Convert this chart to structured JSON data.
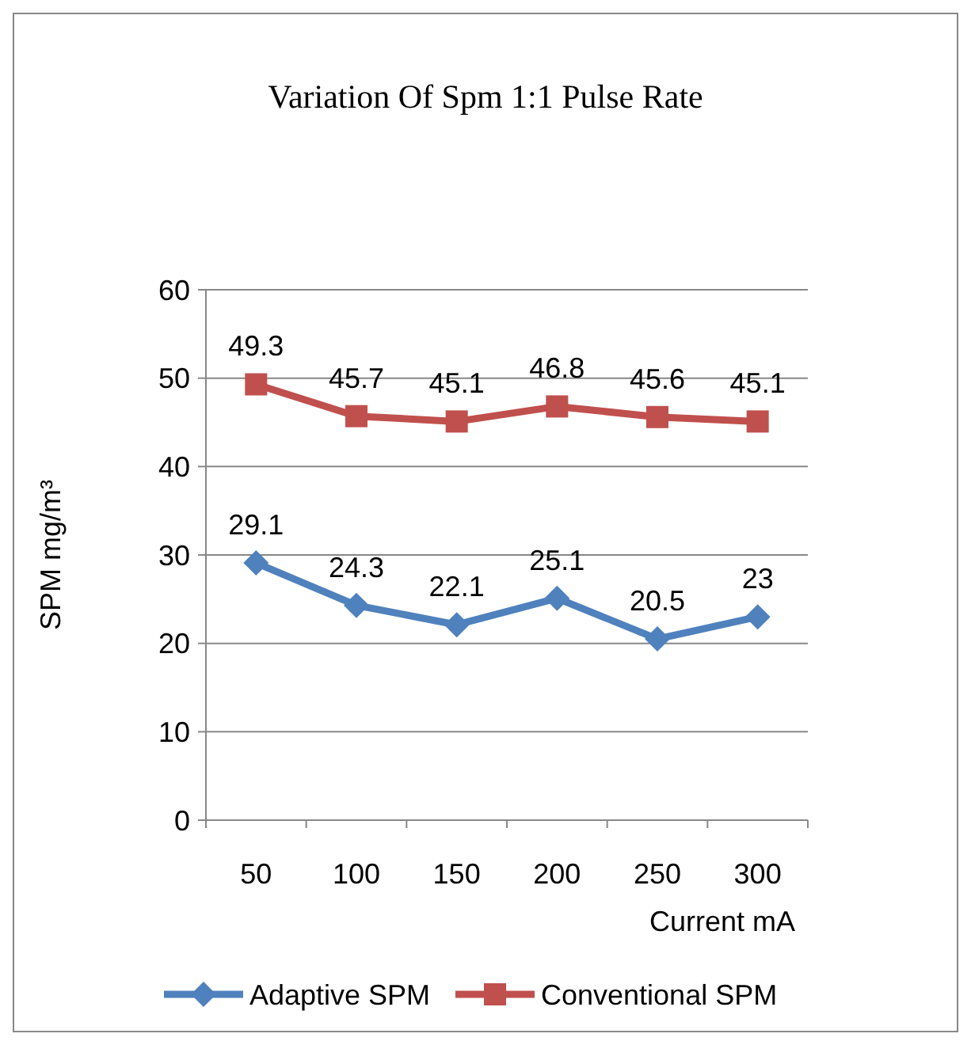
{
  "chart_data": {
    "type": "line",
    "title": "Variation Of Spm 1:1 Pulse Rate",
    "xlabel": "Current mA",
    "ylabel": "SPM  mg/m³",
    "categories": [
      "50",
      "100",
      "150",
      "200",
      "250",
      "300"
    ],
    "series": [
      {
        "name": "Adaptive SPM",
        "color": "#4f81bd",
        "marker": "diamond",
        "values": [
          29.1,
          24.3,
          22.1,
          25.1,
          20.5,
          23
        ]
      },
      {
        "name": "Conventional SPM",
        "color": "#c0504d",
        "marker": "square",
        "values": [
          49.3,
          45.7,
          45.1,
          46.8,
          45.6,
          45.1
        ]
      }
    ],
    "ylim": [
      0,
      60
    ],
    "yticks": [
      0,
      10,
      20,
      30,
      40,
      50,
      60
    ],
    "grid": "y",
    "legend": "bottom",
    "data_labels": true,
    "line_style": "solid"
  }
}
